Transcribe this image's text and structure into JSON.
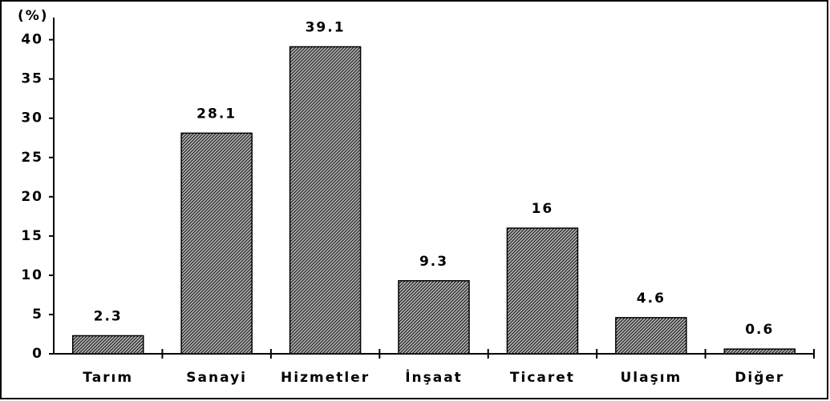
{
  "chart_data": {
    "type": "bar",
    "y_label": "(%)",
    "categories": [
      "Tarım",
      "Sanayi",
      "Hizmetler",
      "İnşaat",
      "Ticaret",
      "Ulaşım",
      "Diğer"
    ],
    "values": [
      2.3,
      28.1,
      39.1,
      9.3,
      16,
      4.6,
      0.6
    ],
    "color": "#555555",
    "ylim": [
      0,
      42
    ],
    "yticks": [
      0,
      5,
      10,
      15,
      20,
      25,
      30,
      35,
      40
    ],
    "grid": false
  }
}
